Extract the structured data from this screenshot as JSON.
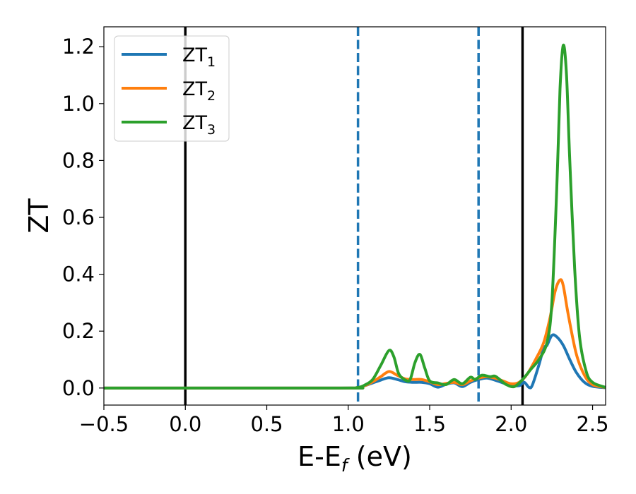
{
  "chart_data": {
    "type": "line",
    "title": "",
    "xlabel": {
      "main": "E-E",
      "sub": "f",
      "suffix": " (eV)"
    },
    "ylabel": "ZT",
    "xlim": [
      -0.5,
      2.58
    ],
    "ylim": [
      -0.06,
      1.27
    ],
    "xticks": [
      -0.5,
      0.0,
      0.5,
      1.0,
      1.5,
      2.0,
      2.5
    ],
    "xtick_labels": [
      "−0.5",
      "0.0",
      "0.5",
      "1.0",
      "1.5",
      "2.0",
      "2.5"
    ],
    "yticks": [
      0.0,
      0.2,
      0.4,
      0.6,
      0.8,
      1.0,
      1.2
    ],
    "ytick_labels": [
      "0.0",
      "0.2",
      "0.4",
      "0.6",
      "0.8",
      "1.0",
      "1.2"
    ],
    "grid": false,
    "legend_position": "top-left",
    "vertical_lines": [
      {
        "x": 0.0,
        "style": "solid",
        "color": "#000000"
      },
      {
        "x": 2.07,
        "style": "solid",
        "color": "#000000"
      },
      {
        "x": 1.06,
        "style": "dashed",
        "color": "#1f77b4"
      },
      {
        "x": 1.8,
        "style": "dashed",
        "color": "#1f77b4"
      }
    ],
    "series": [
      {
        "name": "ZT",
        "subscript": "1",
        "color": "#1f77b4",
        "points": [
          [
            -0.5,
            0
          ],
          [
            0.95,
            0
          ],
          [
            1.05,
            0.001
          ],
          [
            1.1,
            0.008
          ],
          [
            1.15,
            0.018
          ],
          [
            1.2,
            0.028
          ],
          [
            1.25,
            0.036
          ],
          [
            1.3,
            0.03
          ],
          [
            1.35,
            0.022
          ],
          [
            1.4,
            0.02
          ],
          [
            1.45,
            0.02
          ],
          [
            1.5,
            0.015
          ],
          [
            1.55,
            0.003
          ],
          [
            1.6,
            0.013
          ],
          [
            1.65,
            0.018
          ],
          [
            1.7,
            0.005
          ],
          [
            1.75,
            0.02
          ],
          [
            1.8,
            0.03
          ],
          [
            1.85,
            0.035
          ],
          [
            1.9,
            0.028
          ],
          [
            1.95,
            0.018
          ],
          [
            2.0,
            0.01
          ],
          [
            2.05,
            0.008
          ],
          [
            2.08,
            0.02
          ],
          [
            2.11,
            0.002
          ],
          [
            2.13,
            0.01
          ],
          [
            2.17,
            0.08
          ],
          [
            2.2,
            0.14
          ],
          [
            2.22,
            0.15
          ],
          [
            2.25,
            0.185
          ],
          [
            2.28,
            0.18
          ],
          [
            2.32,
            0.15
          ],
          [
            2.36,
            0.1
          ],
          [
            2.4,
            0.055
          ],
          [
            2.45,
            0.02
          ],
          [
            2.5,
            0.006
          ],
          [
            2.58,
            0.001
          ]
        ]
      },
      {
        "name": "ZT",
        "subscript": "2",
        "color": "#ff7f0e",
        "points": [
          [
            -0.5,
            0
          ],
          [
            0.95,
            0
          ],
          [
            1.05,
            0.001
          ],
          [
            1.1,
            0.008
          ],
          [
            1.15,
            0.022
          ],
          [
            1.2,
            0.04
          ],
          [
            1.25,
            0.058
          ],
          [
            1.3,
            0.045
          ],
          [
            1.35,
            0.032
          ],
          [
            1.4,
            0.03
          ],
          [
            1.45,
            0.03
          ],
          [
            1.5,
            0.022
          ],
          [
            1.55,
            0.012
          ],
          [
            1.6,
            0.016
          ],
          [
            1.65,
            0.02
          ],
          [
            1.7,
            0.012
          ],
          [
            1.75,
            0.025
          ],
          [
            1.8,
            0.035
          ],
          [
            1.85,
            0.04
          ],
          [
            1.9,
            0.035
          ],
          [
            1.95,
            0.025
          ],
          [
            2.0,
            0.015
          ],
          [
            2.05,
            0.02
          ],
          [
            2.1,
            0.05
          ],
          [
            2.15,
            0.1
          ],
          [
            2.2,
            0.16
          ],
          [
            2.24,
            0.25
          ],
          [
            2.27,
            0.34
          ],
          [
            2.3,
            0.38
          ],
          [
            2.32,
            0.36
          ],
          [
            2.35,
            0.26
          ],
          [
            2.4,
            0.12
          ],
          [
            2.45,
            0.045
          ],
          [
            2.5,
            0.012
          ],
          [
            2.58,
            0.002
          ]
        ]
      },
      {
        "name": "ZT",
        "subscript": "3",
        "color": "#2ca02c",
        "points": [
          [
            -0.5,
            0
          ],
          [
            0.95,
            0
          ],
          [
            1.05,
            0.001
          ],
          [
            1.1,
            0.01
          ],
          [
            1.15,
            0.03
          ],
          [
            1.2,
            0.08
          ],
          [
            1.25,
            0.132
          ],
          [
            1.28,
            0.11
          ],
          [
            1.31,
            0.05
          ],
          [
            1.35,
            0.028
          ],
          [
            1.38,
            0.03
          ],
          [
            1.41,
            0.09
          ],
          [
            1.44,
            0.118
          ],
          [
            1.47,
            0.07
          ],
          [
            1.5,
            0.025
          ],
          [
            1.55,
            0.018
          ],
          [
            1.6,
            0.012
          ],
          [
            1.65,
            0.03
          ],
          [
            1.7,
            0.015
          ],
          [
            1.75,
            0.038
          ],
          [
            1.78,
            0.03
          ],
          [
            1.82,
            0.045
          ],
          [
            1.87,
            0.04
          ],
          [
            1.9,
            0.042
          ],
          [
            1.93,
            0.03
          ],
          [
            1.97,
            0.012
          ],
          [
            2.02,
            0.005
          ],
          [
            2.07,
            0.03
          ],
          [
            2.12,
            0.065
          ],
          [
            2.17,
            0.1
          ],
          [
            2.22,
            0.16
          ],
          [
            2.25,
            0.3
          ],
          [
            2.28,
            0.7
          ],
          [
            2.3,
            1.05
          ],
          [
            2.32,
            1.205
          ],
          [
            2.34,
            1.1
          ],
          [
            2.36,
            0.8
          ],
          [
            2.39,
            0.42
          ],
          [
            2.42,
            0.18
          ],
          [
            2.46,
            0.06
          ],
          [
            2.5,
            0.02
          ],
          [
            2.58,
            0.002
          ]
        ]
      }
    ]
  }
}
